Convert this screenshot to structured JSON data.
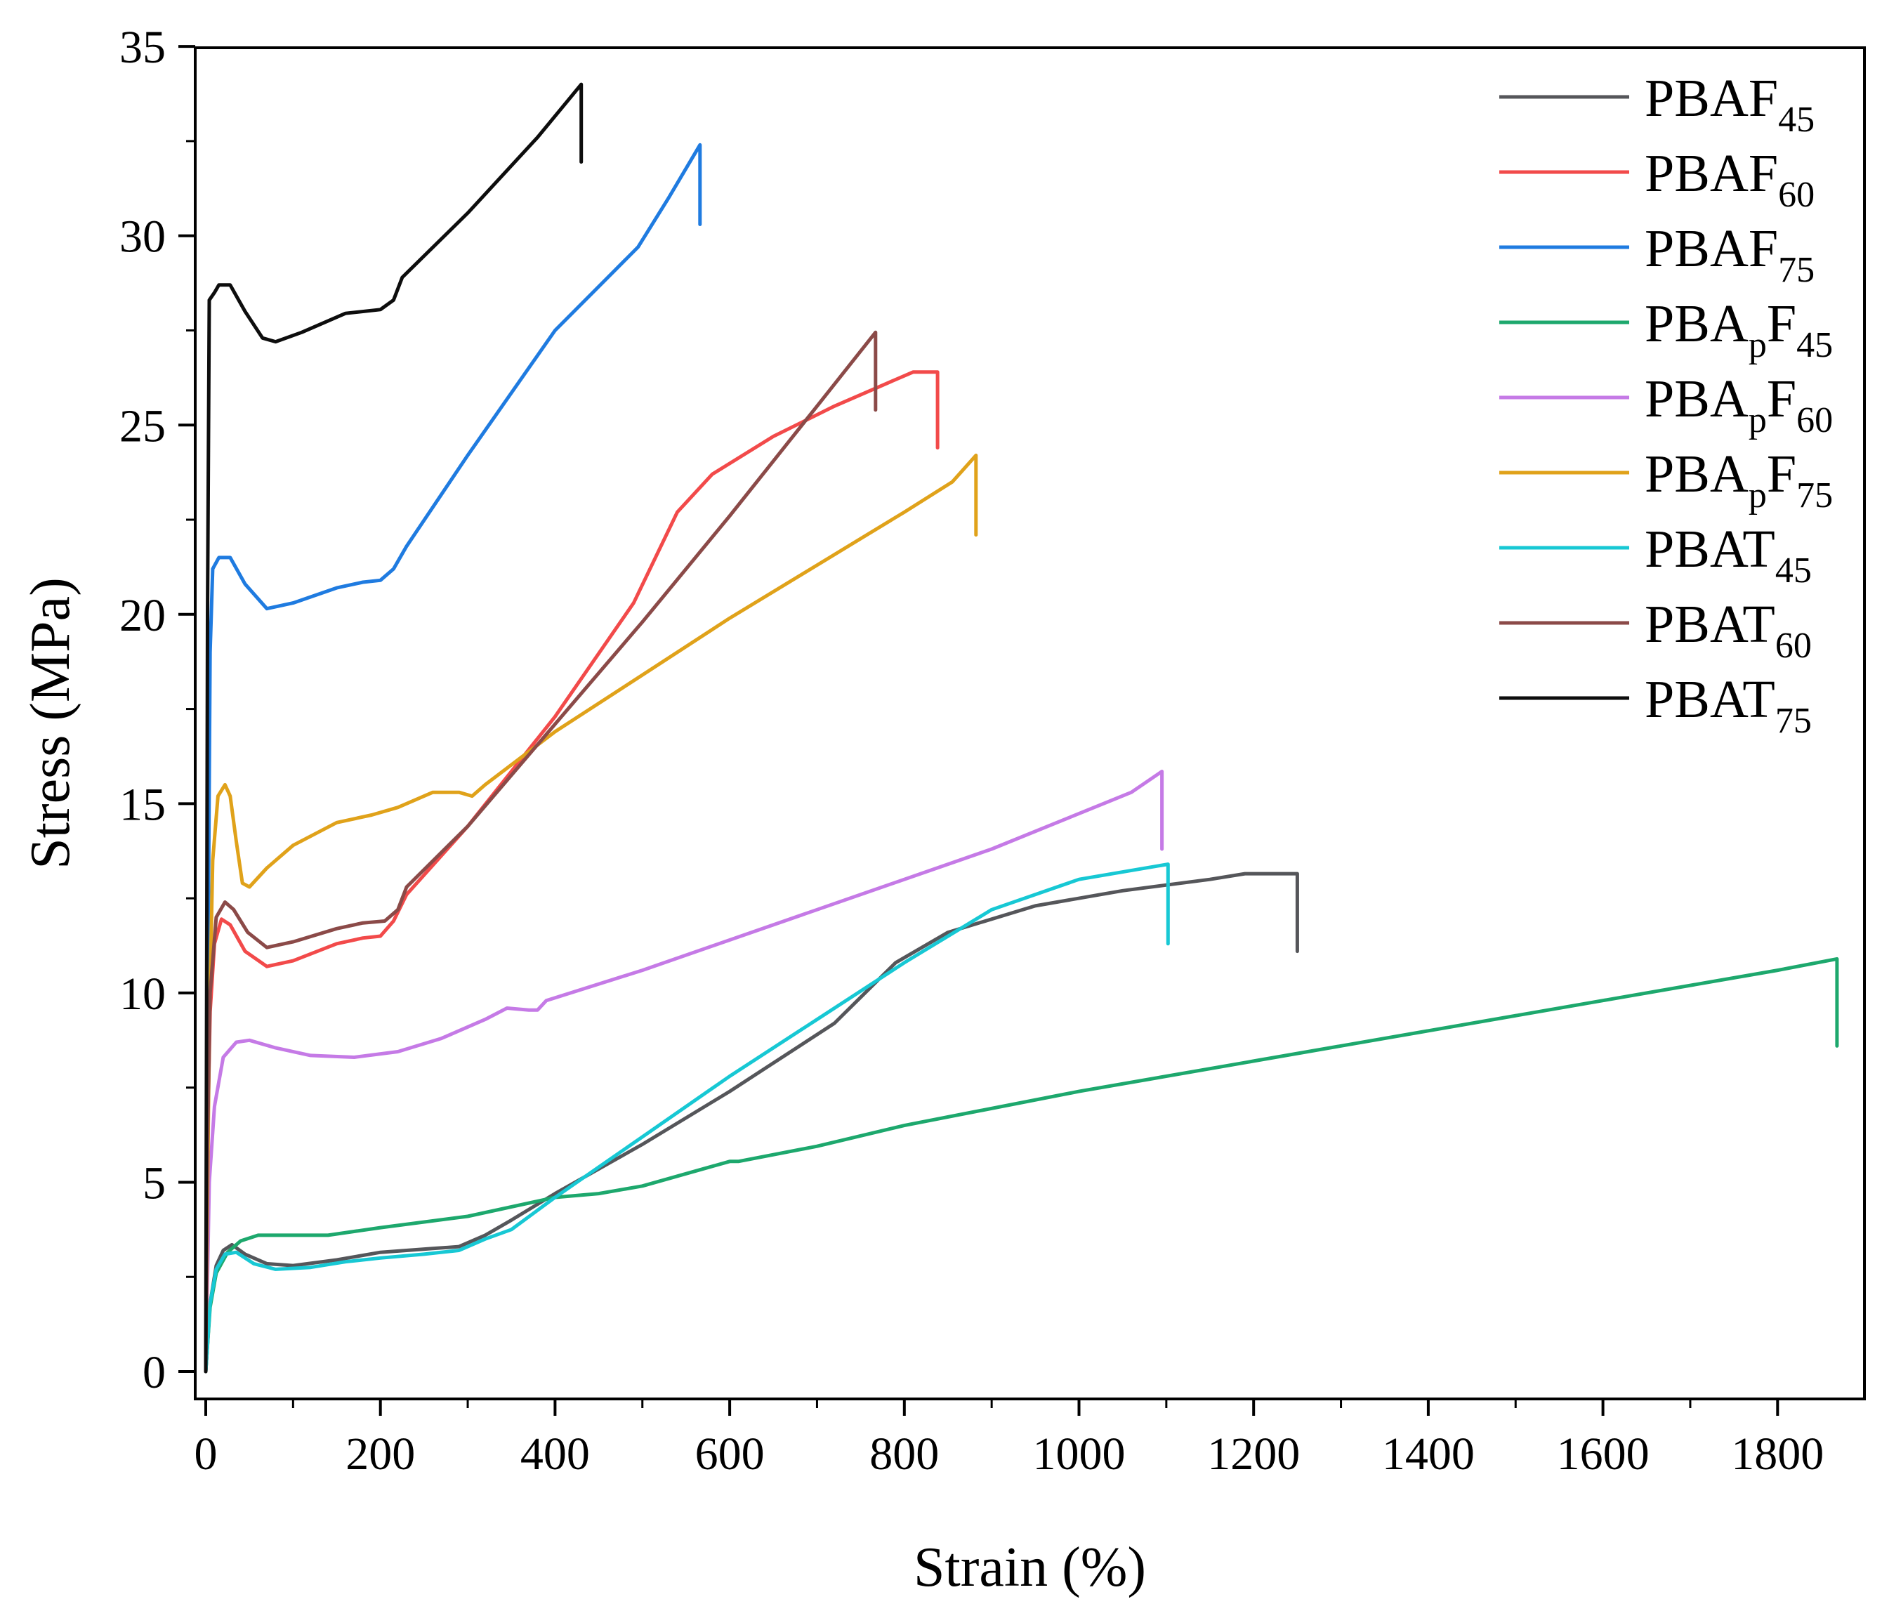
{
  "chart_data": {
    "type": "line",
    "title": "",
    "xlabel": "Strain (%)",
    "ylabel": "Stress (MPa)",
    "xlim": [
      -10,
      1900
    ],
    "ylim": [
      -0.5,
      35
    ],
    "xticks": [
      0,
      200,
      400,
      600,
      800,
      1000,
      1200,
      1400,
      1600,
      1800
    ],
    "yticks": [
      0,
      5,
      10,
      15,
      20,
      25,
      30,
      35
    ],
    "grid": false,
    "legend_position": "top-right",
    "series": [
      {
        "name": "PBAF",
        "sub": "45",
        "color": "#55565a",
        "points": [
          [
            0,
            0
          ],
          [
            5,
            1.8
          ],
          [
            12,
            2.8
          ],
          [
            20,
            3.2
          ],
          [
            30,
            3.35
          ],
          [
            45,
            3.1
          ],
          [
            70,
            2.85
          ],
          [
            100,
            2.8
          ],
          [
            150,
            2.95
          ],
          [
            200,
            3.15
          ],
          [
            260,
            3.25
          ],
          [
            290,
            3.3
          ],
          [
            320,
            3.6
          ],
          [
            350,
            4.0
          ],
          [
            400,
            4.7
          ],
          [
            500,
            6.0
          ],
          [
            600,
            7.4
          ],
          [
            720,
            9.2
          ],
          [
            790,
            10.8
          ],
          [
            850,
            11.6
          ],
          [
            950,
            12.3
          ],
          [
            1050,
            12.7
          ],
          [
            1150,
            13.0
          ],
          [
            1190,
            13.15
          ],
          [
            1250,
            13.15
          ],
          [
            1250,
            11.1
          ]
        ]
      },
      {
        "name": "PBAF",
        "sub": "60",
        "color": "#f24a4a",
        "points": [
          [
            0,
            0
          ],
          [
            2,
            6
          ],
          [
            5,
            9.5
          ],
          [
            10,
            11.3
          ],
          [
            18,
            11.95
          ],
          [
            28,
            11.8
          ],
          [
            45,
            11.1
          ],
          [
            70,
            10.7
          ],
          [
            100,
            10.85
          ],
          [
            150,
            11.3
          ],
          [
            180,
            11.45
          ],
          [
            200,
            11.5
          ],
          [
            215,
            11.9
          ],
          [
            230,
            12.6
          ],
          [
            300,
            14.4
          ],
          [
            400,
            17.3
          ],
          [
            490,
            20.3
          ],
          [
            540,
            22.7
          ],
          [
            580,
            23.7
          ],
          [
            650,
            24.7
          ],
          [
            720,
            25.5
          ],
          [
            780,
            26.1
          ],
          [
            810,
            26.4
          ],
          [
            838,
            26.4
          ],
          [
            838,
            24.4
          ]
        ]
      },
      {
        "name": "PBAF",
        "sub": "75",
        "color": "#1f7be0",
        "points": [
          [
            0,
            0
          ],
          [
            3,
            12
          ],
          [
            5,
            19
          ],
          [
            8,
            21.2
          ],
          [
            15,
            21.5
          ],
          [
            28,
            21.5
          ],
          [
            45,
            20.8
          ],
          [
            70,
            20.15
          ],
          [
            100,
            20.3
          ],
          [
            150,
            20.7
          ],
          [
            180,
            20.85
          ],
          [
            200,
            20.9
          ],
          [
            215,
            21.2
          ],
          [
            230,
            21.8
          ],
          [
            300,
            24.2
          ],
          [
            400,
            27.5
          ],
          [
            495,
            29.7
          ],
          [
            530,
            31.0
          ],
          [
            566,
            32.4
          ],
          [
            566,
            30.3
          ]
        ]
      },
      {
        "name": "PBA",
        "sub": "p",
        "sub2": "45",
        "color": "#1da86d",
        "points": [
          [
            0,
            0
          ],
          [
            5,
            1.7
          ],
          [
            12,
            2.6
          ],
          [
            25,
            3.15
          ],
          [
            40,
            3.45
          ],
          [
            60,
            3.6
          ],
          [
            100,
            3.6
          ],
          [
            140,
            3.6
          ],
          [
            200,
            3.8
          ],
          [
            300,
            4.1
          ],
          [
            400,
            4.6
          ],
          [
            450,
            4.7
          ],
          [
            500,
            4.9
          ],
          [
            600,
            5.55
          ],
          [
            610,
            5.55
          ],
          [
            700,
            5.95
          ],
          [
            800,
            6.5
          ],
          [
            1000,
            7.4
          ],
          [
            1200,
            8.2
          ],
          [
            1400,
            9.0
          ],
          [
            1600,
            9.8
          ],
          [
            1800,
            10.6
          ],
          [
            1868,
            10.9
          ],
          [
            1868,
            8.6
          ]
        ]
      },
      {
        "name": "PBA",
        "sub": "p",
        "sub2": "60",
        "color": "#c57ae6",
        "points": [
          [
            0,
            0
          ],
          [
            4,
            5
          ],
          [
            10,
            7
          ],
          [
            20,
            8.3
          ],
          [
            35,
            8.7
          ],
          [
            50,
            8.75
          ],
          [
            80,
            8.55
          ],
          [
            120,
            8.35
          ],
          [
            170,
            8.3
          ],
          [
            220,
            8.45
          ],
          [
            270,
            8.8
          ],
          [
            320,
            9.3
          ],
          [
            345,
            9.6
          ],
          [
            370,
            9.55
          ],
          [
            380,
            9.55
          ],
          [
            390,
            9.8
          ],
          [
            500,
            10.6
          ],
          [
            700,
            12.2
          ],
          [
            900,
            13.8
          ],
          [
            1060,
            15.3
          ],
          [
            1095,
            15.85
          ],
          [
            1095,
            13.8
          ]
        ]
      },
      {
        "name": "PBA",
        "sub": "p",
        "sub2": "75",
        "color": "#e0a21a",
        "points": [
          [
            0,
            0
          ],
          [
            4,
            9
          ],
          [
            8,
            13.5
          ],
          [
            14,
            15.2
          ],
          [
            22,
            15.5
          ],
          [
            28,
            15.2
          ],
          [
            35,
            14.0
          ],
          [
            42,
            12.9
          ],
          [
            50,
            12.8
          ],
          [
            70,
            13.3
          ],
          [
            100,
            13.9
          ],
          [
            150,
            14.5
          ],
          [
            190,
            14.7
          ],
          [
            220,
            14.9
          ],
          [
            260,
            15.3
          ],
          [
            290,
            15.3
          ],
          [
            305,
            15.2
          ],
          [
            320,
            15.5
          ],
          [
            400,
            16.9
          ],
          [
            500,
            18.4
          ],
          [
            600,
            19.9
          ],
          [
            700,
            21.3
          ],
          [
            800,
            22.7
          ],
          [
            855,
            23.5
          ],
          [
            882,
            24.2
          ],
          [
            882,
            22.1
          ]
        ]
      },
      {
        "name": "PBAT",
        "sub": "45",
        "color": "#17c8d4",
        "points": [
          [
            0,
            0
          ],
          [
            5,
            1.8
          ],
          [
            12,
            2.7
          ],
          [
            22,
            3.1
          ],
          [
            35,
            3.15
          ],
          [
            55,
            2.85
          ],
          [
            80,
            2.7
          ],
          [
            120,
            2.75
          ],
          [
            160,
            2.9
          ],
          [
            200,
            3.0
          ],
          [
            250,
            3.1
          ],
          [
            290,
            3.2
          ],
          [
            320,
            3.5
          ],
          [
            350,
            3.75
          ],
          [
            400,
            4.6
          ],
          [
            500,
            6.2
          ],
          [
            600,
            7.8
          ],
          [
            700,
            9.3
          ],
          [
            800,
            10.8
          ],
          [
            900,
            12.2
          ],
          [
            1000,
            13.0
          ],
          [
            1102,
            13.4
          ],
          [
            1102,
            11.3
          ]
        ]
      },
      {
        "name": "PBAT",
        "sub": "60",
        "color": "#8b4a48",
        "points": [
          [
            0,
            0
          ],
          [
            2,
            6
          ],
          [
            5,
            10
          ],
          [
            12,
            12
          ],
          [
            22,
            12.4
          ],
          [
            32,
            12.2
          ],
          [
            48,
            11.6
          ],
          [
            70,
            11.2
          ],
          [
            100,
            11.35
          ],
          [
            150,
            11.7
          ],
          [
            180,
            11.85
          ],
          [
            205,
            11.9
          ],
          [
            220,
            12.2
          ],
          [
            230,
            12.8
          ],
          [
            300,
            14.4
          ],
          [
            400,
            17.1
          ],
          [
            500,
            19.8
          ],
          [
            600,
            22.6
          ],
          [
            700,
            25.5
          ],
          [
            767,
            27.45
          ],
          [
            767,
            25.4
          ]
        ]
      },
      {
        "name": "PBAT",
        "sub": "75",
        "color": "#0d0d0d",
        "points": [
          [
            0,
            0
          ],
          [
            2,
            20
          ],
          [
            4,
            28.3
          ],
          [
            10,
            28.5
          ],
          [
            15,
            28.7
          ],
          [
            28,
            28.7
          ],
          [
            45,
            28.0
          ],
          [
            65,
            27.3
          ],
          [
            80,
            27.2
          ],
          [
            110,
            27.45
          ],
          [
            160,
            27.95
          ],
          [
            200,
            28.05
          ],
          [
            215,
            28.3
          ],
          [
            225,
            28.9
          ],
          [
            300,
            30.6
          ],
          [
            380,
            32.6
          ],
          [
            430,
            34.0
          ],
          [
            430,
            31.95
          ]
        ]
      }
    ]
  }
}
